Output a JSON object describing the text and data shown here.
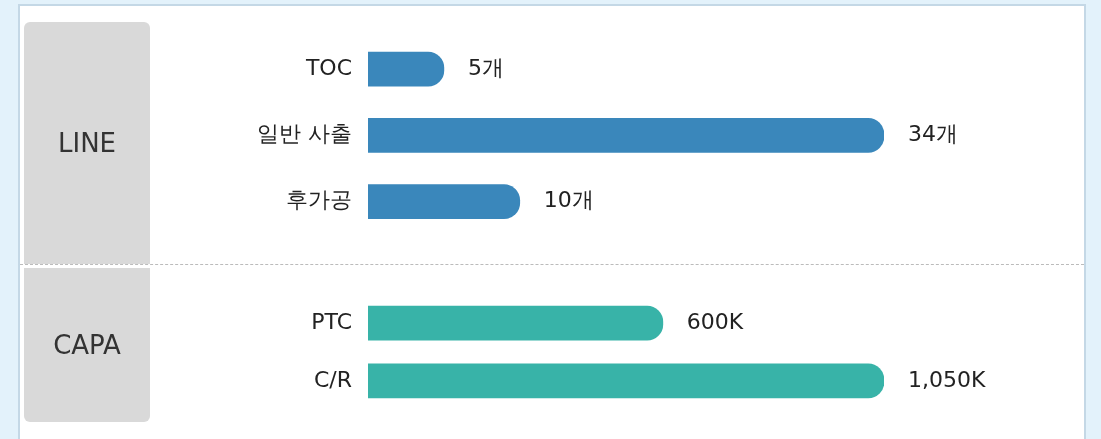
{
  "chart_data": [
    {
      "type": "bar",
      "orientation": "horizontal",
      "ylabel": "LINE",
      "categories": [
        "TOC",
        "일반 사출",
        "후가공"
      ],
      "values": [
        5,
        34,
        10
      ],
      "value_labels": [
        "5개",
        "34개",
        "10개"
      ],
      "color": "#3a87bb",
      "tick_labels": "y",
      "grid": false,
      "legend": false
    },
    {
      "type": "bar",
      "orientation": "horizontal",
      "ylabel": "CAPA",
      "categories": [
        "PTC",
        "C/R"
      ],
      "values": [
        600,
        1050
      ],
      "value_labels": [
        "600K",
        "1,050K"
      ],
      "color": "#38b3a8",
      "tick_labels": "y",
      "grid": false,
      "legend": false
    }
  ]
}
